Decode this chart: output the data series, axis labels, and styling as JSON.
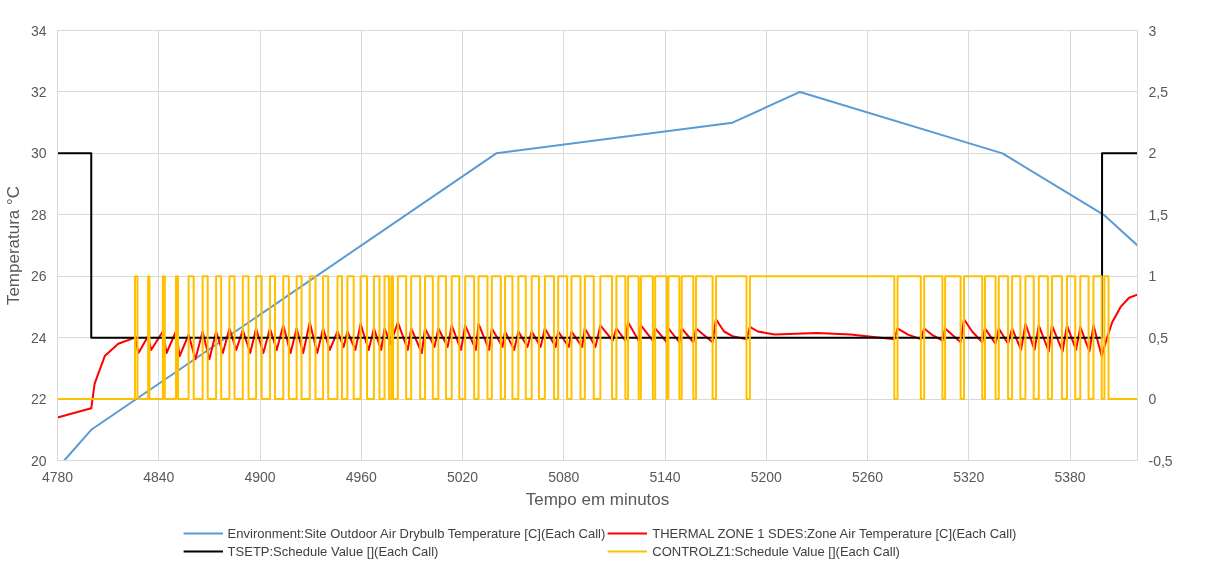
{
  "chart_data": {
    "type": "line",
    "xlabel": "Tempo em minutos",
    "ylabel": "Temperatura °C",
    "xlim": [
      4780,
      5420
    ],
    "xticks": [
      4780,
      4840,
      4900,
      4960,
      5020,
      5080,
      5140,
      5200,
      5260,
      5320,
      5380
    ],
    "ylim": [
      20,
      34
    ],
    "yticks": [
      20,
      22,
      24,
      26,
      28,
      30,
      32,
      34
    ],
    "y2lim": [
      -0.5,
      3
    ],
    "y2ticks": [
      {
        "value": -0.5,
        "label": "-0,5"
      },
      {
        "value": 0,
        "label": "0"
      },
      {
        "value": 0.5,
        "label": "0,5"
      },
      {
        "value": 1,
        "label": "1"
      },
      {
        "value": 1.5,
        "label": "1,5"
      },
      {
        "value": 2,
        "label": "2"
      },
      {
        "value": 2.5,
        "label": "2,5"
      },
      {
        "value": 3,
        "label": "3"
      }
    ],
    "grid": true,
    "legend": "bottom",
    "series": [
      {
        "name": "Environment:Site Outdoor Air Drybulb Temperature [C](Each Call)",
        "color": "#5b9bd5",
        "type": "line",
        "x": [
          4784,
          4800,
          5040,
          5180,
          5220,
          5340,
          5400,
          5420
        ],
        "values": [
          20,
          21,
          30,
          31,
          32,
          30,
          28,
          27
        ]
      },
      {
        "name": "THERMAL ZONE 1 SDES:Zone Air Temperature [C](Each Call)",
        "color": "#ff0000",
        "type": "line",
        "x": [
          4780,
          4800,
          4802,
          4808,
          4816,
          4825.9,
          4828,
          4833.7,
          4835.5,
          4842.4,
          4844.6,
          4850.2,
          4852.4,
          4857.7,
          4861.7,
          4866,
          4870,
          4874,
          4878,
          4881.9,
          4885.9,
          4889.8,
          4894.2,
          4897.7,
          4902,
          4905.9,
          4909.9,
          4913.8,
          4918.1,
          4921.7,
          4925.6,
          4929.5,
          4933.9,
          4937.4,
          4941.4,
          4945.9,
          4949.6,
          4951.8,
          4956.5,
          4959.6,
          4964.4,
          4967.5,
          4971.8,
          4973.8,
          4977.4,
          4981.7,
          4987.6,
          4989.6,
          4995.9,
          4997.8,
          5003.4,
          5005.7,
          5011.2,
          5013.6,
          5019.1,
          5021.6,
          5027.9,
          5029.5,
          5035.8,
          5037.4,
          5043.7,
          5045.2,
          5050.6,
          5053.1,
          5058.5,
          5061,
          5066.3,
          5068.8,
          5075.2,
          5076.7,
          5083,
          5084.6,
          5090.9,
          5092.5,
          5098.8,
          5101.7,
          5109,
          5111.2,
          5116.5,
          5118.1,
          5124.4,
          5125.7,
          5132.8,
          5134.2,
          5141.1,
          5142,
          5148.5,
          5149.9,
          5156.8,
          5158.4,
          5168.2,
          5170.2,
          5175,
          5180,
          5188.3,
          5190.3,
          5195,
          5205,
          5230,
          5250,
          5275.9,
          5277.8,
          5284,
          5291.6,
          5293.6,
          5298,
          5304.4,
          5306,
          5310,
          5315.2,
          5317.2,
          5322,
          5328,
          5329.6,
          5335.9,
          5337.8,
          5343.3,
          5345.7,
          5351,
          5353.6,
          5359,
          5361.5,
          5367.4,
          5369.3,
          5375.6,
          5378.2,
          5383.6,
          5386.1,
          5391.5,
          5393.9,
          5398.8,
          5402,
          5405,
          5410,
          5415,
          5420
        ],
        "values": [
          21.4,
          21.7,
          22.5,
          23.4,
          23.8,
          24.0,
          23.5,
          24.05,
          23.6,
          24.2,
          23.5,
          24.2,
          23.4,
          24.1,
          23.3,
          24.2,
          23.3,
          24.2,
          23.5,
          24.3,
          23.6,
          24.25,
          23.5,
          24.3,
          23.5,
          24.3,
          23.6,
          24.4,
          23.5,
          24.3,
          23.5,
          24.5,
          23.5,
          24.3,
          23.6,
          24.2,
          23.7,
          24.2,
          23.6,
          24.45,
          23.6,
          24.3,
          23.6,
          24.3,
          23.8,
          24.5,
          23.6,
          24.3,
          23.5,
          24.3,
          23.7,
          24.3,
          23.7,
          24.4,
          23.6,
          24.4,
          23.6,
          24.45,
          23.6,
          24.3,
          23.7,
          24.2,
          23.6,
          24.2,
          23.7,
          24.2,
          23.7,
          24.3,
          23.7,
          24.2,
          23.7,
          24.2,
          23.7,
          24.3,
          23.7,
          24.4,
          23.9,
          24.3,
          23.9,
          24.5,
          23.9,
          24.4,
          23.9,
          24.3,
          23.85,
          24.3,
          23.85,
          24.3,
          23.85,
          24.3,
          23.85,
          24.6,
          24.2,
          24.05,
          23.95,
          24.35,
          24.2,
          24.1,
          24.15,
          24.1,
          23.95,
          24.3,
          24.1,
          23.95,
          24.3,
          24.1,
          23.9,
          24.3,
          24.1,
          23.85,
          24.6,
          24.2,
          23.85,
          24.3,
          23.8,
          24.3,
          23.8,
          24.3,
          23.6,
          24.45,
          23.6,
          24.4,
          23.55,
          24.4,
          23.55,
          24.4,
          23.6,
          24.35,
          23.55,
          24.4,
          23.4,
          24.0,
          24.5,
          25.0,
          25.3,
          25.4
        ]
      },
      {
        "name": "TSETP:Schedule Value [](Each Call)",
        "color": "#000000",
        "type": "line",
        "x": [
          4780,
          4800,
          4800,
          5399,
          5399,
          5420
        ],
        "values": [
          30,
          30,
          24,
          24,
          30,
          30
        ]
      },
      {
        "name": "CONTROLZ1:Schedule Value [](Each Call)",
        "color": "#ffc000",
        "type": "step",
        "axis": "y2",
        "x": [
          4780,
          4825.9,
          4827.4,
          4833.7,
          4834.5,
          4842.4,
          4843.6,
          4850.2,
          4851.4,
          4857.7,
          4860.7,
          4866.0,
          4869.0,
          4874.0,
          4877.0,
          4881.9,
          4884.9,
          4889.8,
          4893.2,
          4897.7,
          4901.0,
          4905.9,
          4908.9,
          4913.8,
          4917.1,
          4921.7,
          4924.6,
          4929.5,
          4932.9,
          4937.4,
          4940.4,
          4945.9,
          4948.6,
          4951.8,
          4955.5,
          4959.6,
          4963.4,
          4967.5,
          4970.8,
          4973.8,
          4976.4,
          4977.8,
          4978.8,
          4981.7,
          4986.6,
          4989.6,
          4994.9,
          4997.8,
          5002.4,
          5005.7,
          5010.2,
          5013.6,
          5018.1,
          5021.6,
          5026.9,
          5029.5,
          5034.8,
          5037.4,
          5042.7,
          5045.2,
          5049.6,
          5053.1,
          5057.5,
          5061.0,
          5065.3,
          5068.8,
          5074.2,
          5076.7,
          5082.0,
          5084.6,
          5089.9,
          5092.5,
          5097.8,
          5101.7,
          5108.6,
          5111.2,
          5116.5,
          5118.1,
          5124.4,
          5125.7,
          5132.8,
          5134.2,
          5141.1,
          5142.0,
          5148.5,
          5149.9,
          5156.8,
          5158.4,
          5168.2,
          5170.2,
          5188.3,
          5190.3,
          5275.9,
          5277.8,
          5291.6,
          5293.6,
          5304.4,
          5306.0,
          5315.2,
          5317.2,
          5328.0,
          5329.6,
          5335.9,
          5337.8,
          5343.3,
          5345.7,
          5350.6,
          5353.6,
          5358.5,
          5361.5,
          5366.9,
          5369.3,
          5375.2,
          5378.2,
          5383.1,
          5386.1,
          5391.0,
          5393.9,
          5398.8,
          5400.4,
          5402.8,
          5420
        ],
        "values": [
          0,
          1,
          0,
          1,
          0,
          1,
          0,
          1,
          0,
          1,
          0,
          1,
          0,
          1,
          0,
          1,
          0,
          1,
          0,
          1,
          0,
          1,
          0,
          1,
          0,
          1,
          0,
          1,
          0,
          1,
          0,
          1,
          0,
          1,
          0,
          1,
          0,
          1,
          0,
          1,
          0,
          1,
          0,
          1,
          0,
          1,
          0,
          1,
          0,
          1,
          0,
          1,
          0,
          1,
          0,
          1,
          0,
          1,
          0,
          1,
          0,
          1,
          0,
          1,
          0,
          1,
          0,
          1,
          0,
          1,
          0,
          1,
          0,
          1,
          0,
          1,
          0,
          1,
          0,
          1,
          0,
          1,
          0,
          1,
          0,
          1,
          0,
          1,
          0,
          1,
          0,
          1,
          0,
          1,
          0,
          1,
          0,
          1,
          0,
          1,
          0,
          1,
          0,
          1,
          0,
          1,
          0,
          1,
          0,
          1,
          0,
          1,
          0,
          1,
          0,
          1,
          0,
          1,
          0,
          1,
          0,
          0
        ]
      }
    ]
  }
}
